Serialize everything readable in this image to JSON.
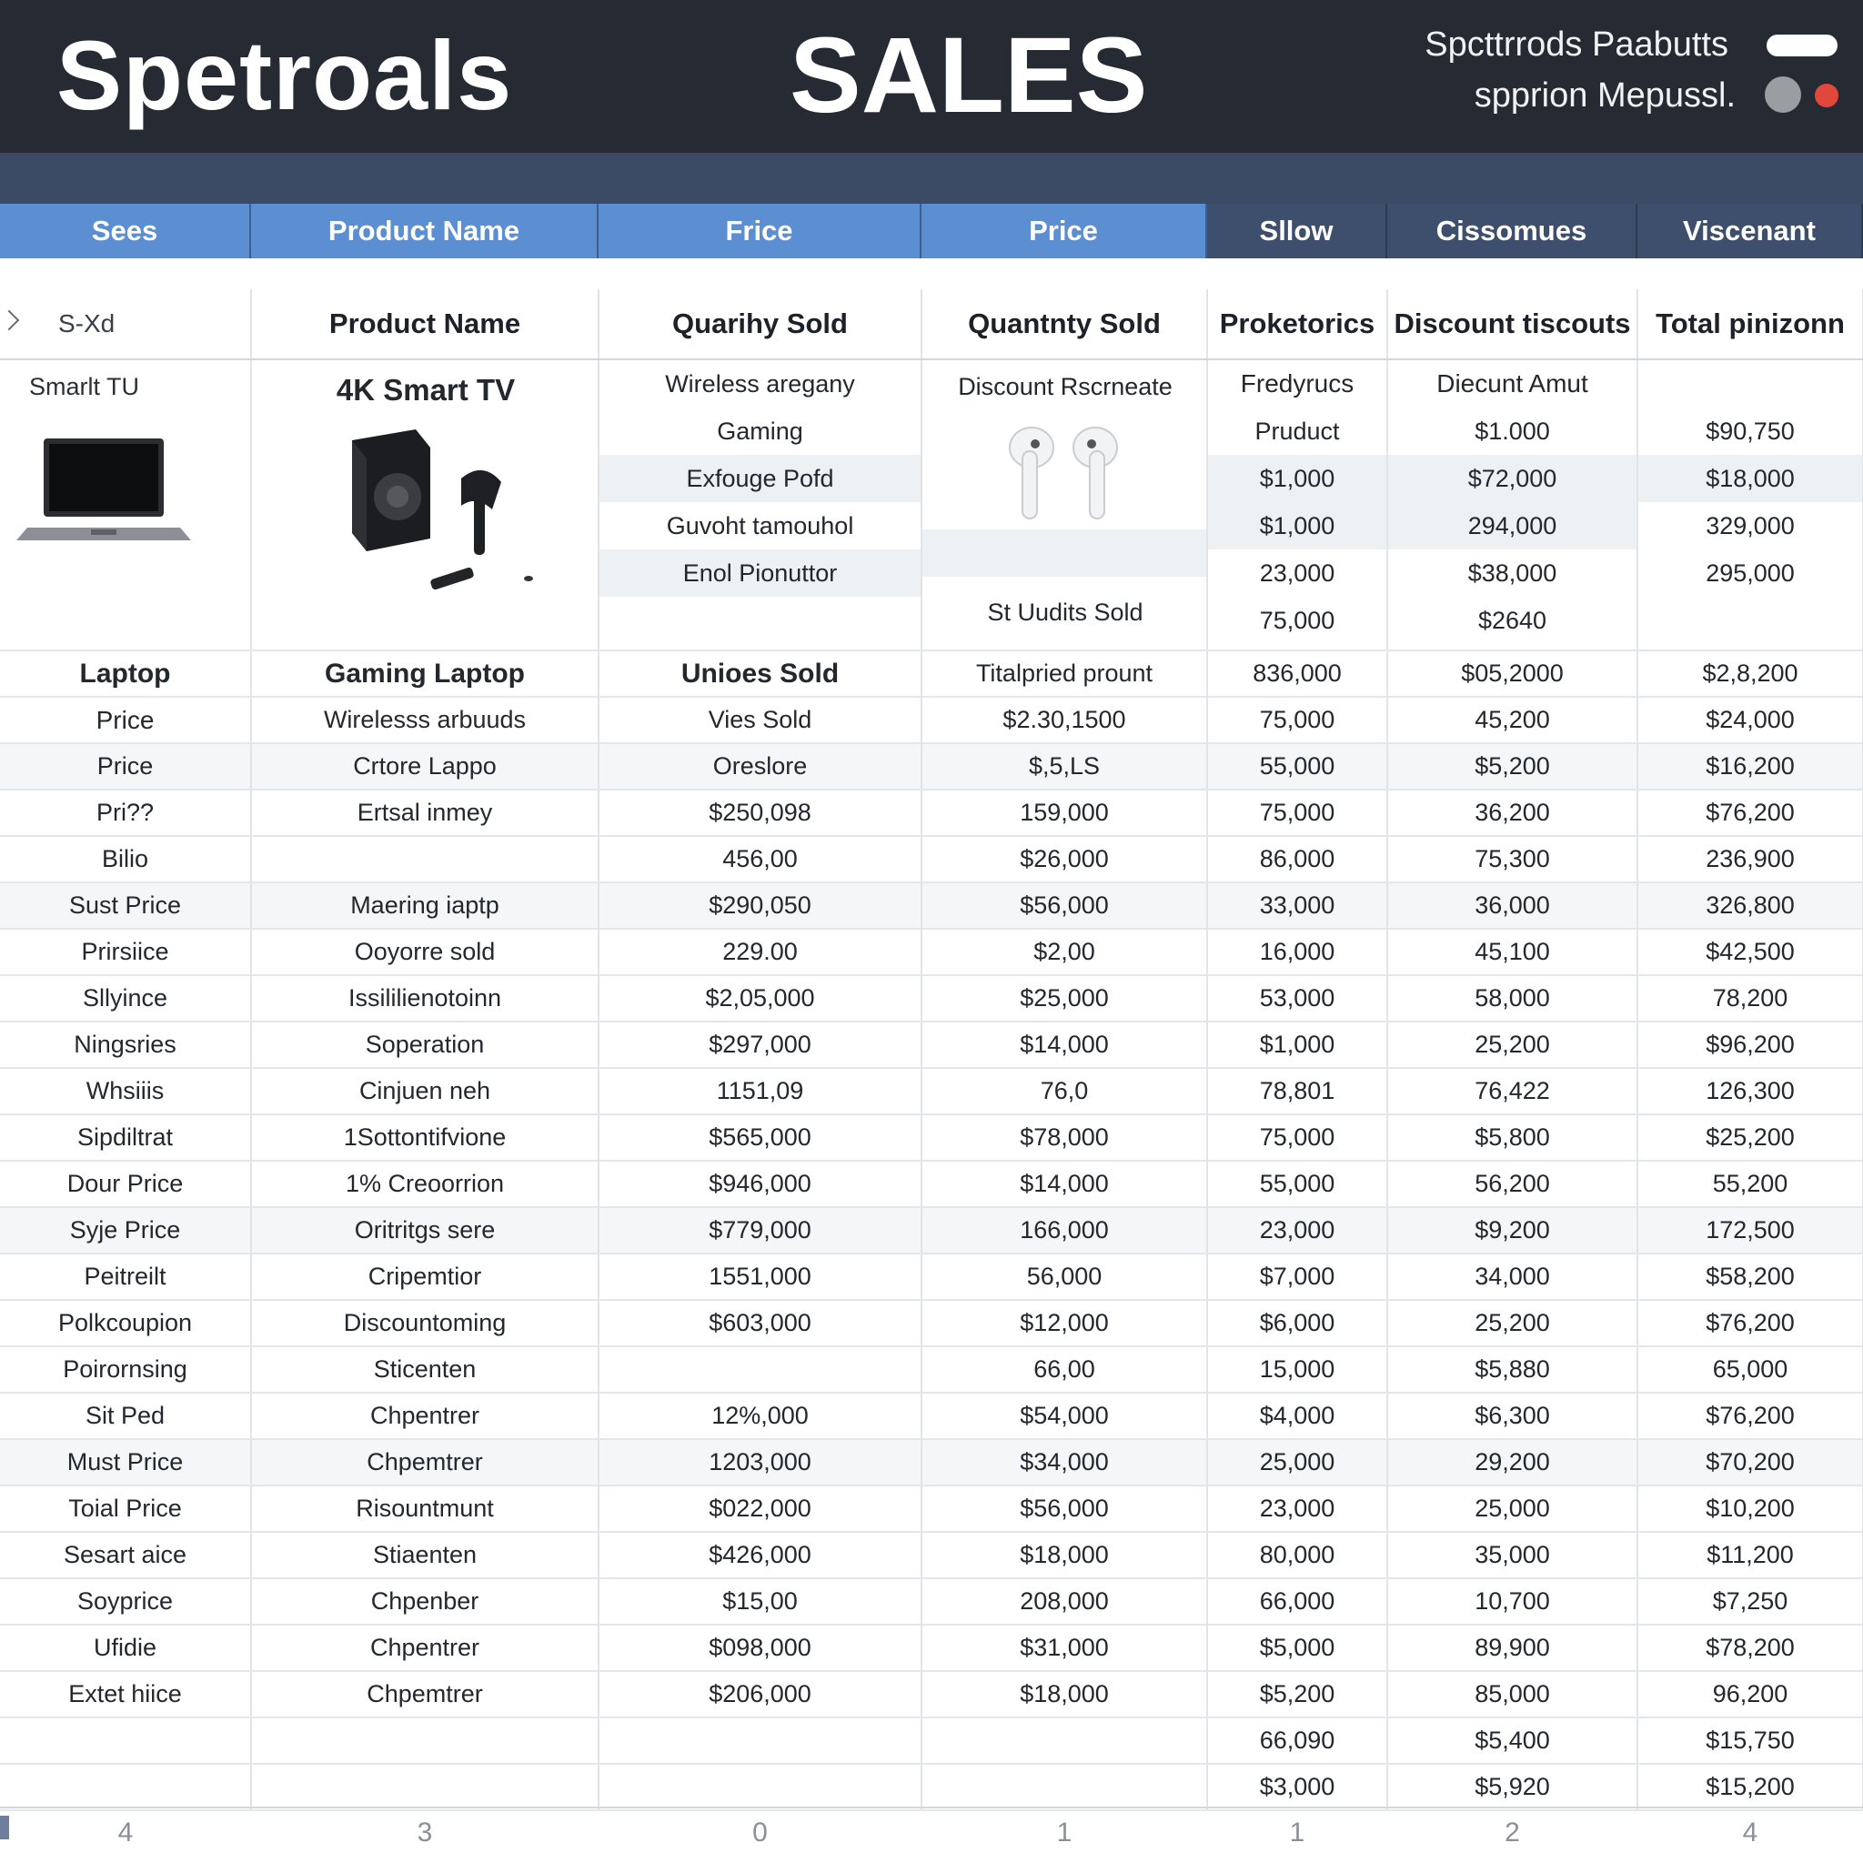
{
  "header": {
    "brand": "Spetroals",
    "title": "SALES",
    "subtitle_line1": "Spcttrrods Paabutts",
    "subtitle_line2": "spprion Mepussl."
  },
  "tabs": [
    {
      "label": "Sees",
      "style": "light"
    },
    {
      "label": "Product Name",
      "style": "light"
    },
    {
      "label": "Frice",
      "style": "light"
    },
    {
      "label": "Price",
      "style": "light"
    },
    {
      "label": "Sllow",
      "style": "dark"
    },
    {
      "label": "Cissomues",
      "style": "dark"
    },
    {
      "label": "Viscenant",
      "style": "dark"
    }
  ],
  "columns": [
    "S-Xd",
    "Product Name",
    "Quarihy Sold",
    "Quantnty Sold",
    "Proketorics",
    "Discount tiscouts",
    "Total pinizonn"
  ],
  "image_block": {
    "col0_label": "Smarlt TU",
    "col1_title": "4K Smart TV",
    "col2_items": [
      "Wireless aregany",
      "Gaming",
      "Exfouge Pofd",
      "Guvoht tamouhol",
      "Enol Pionuttor"
    ],
    "col3_top": "Discount Rscrneate",
    "col3_bottom": "St Uudits Sold",
    "col4_items": [
      "Fredyrucs",
      "Pruduct",
      "$1,000",
      "$1,000",
      "23,000",
      "75,000"
    ],
    "col5_items": [
      "Diecunt Amut",
      "$1.000",
      "$72,000",
      "294,000",
      "$38,000",
      "$2640"
    ],
    "col6_items": [
      "",
      "$90,750",
      "$18,000",
      "329,000",
      "295,000",
      ""
    ]
  },
  "rows": [
    [
      "Laptop",
      "Gaming Laptop",
      "Unioes Sold",
      "Titalpried prount",
      "836,000",
      "$05,2000",
      "$2,8,200"
    ],
    [
      "Price",
      "Wirelesss arbuuds",
      "Vies Sold",
      "$2.30,1500",
      "75,000",
      "45,200",
      "$24,000"
    ],
    [
      "Price",
      "Crtore Lappo",
      "Oreslore",
      "$,5,LS",
      "55,000",
      "$5,200",
      "$16,200"
    ],
    [
      "Pri??",
      "Ertsal inmey",
      "$250,098",
      "159,000",
      "75,000",
      "36,200",
      "$76,200"
    ],
    [
      "Bilio",
      "",
      "456,00",
      "$26,000",
      "86,000",
      "75,300",
      "236,900"
    ],
    [
      "Sust Price",
      "Maering iaptp",
      "$290,050",
      "$56,000",
      "33,000",
      "36,000",
      "326,800"
    ],
    [
      "Prirsiice",
      "Ooyorre sold",
      "229.00",
      "$2,00",
      "16,000",
      "45,100",
      "$42,500"
    ],
    [
      "Sllyince",
      "Issililienotoinn",
      "$2,05,000",
      "$25,000",
      "53,000",
      "58,000",
      "78,200"
    ],
    [
      "Ningsries",
      "Soperation",
      "$297,000",
      "$14,000",
      "$1,000",
      "25,200",
      "$96,200"
    ],
    [
      "Whsiiis",
      "Cinjuen neh",
      "1151,09",
      "76,0",
      "78,801",
      "76,422",
      "126,300"
    ],
    [
      "Sipdiltrat",
      "1Sottontifvione",
      "$565,000",
      "$78,000",
      "75,000",
      "$5,800",
      "$25,200"
    ],
    [
      "Dour Price",
      "1% Creoorrion",
      "$946,000",
      "$14,000",
      "55,000",
      "56,200",
      "55,200"
    ],
    [
      "Syje Price",
      "Oritritgs sere",
      "$779,000",
      "166,000",
      "23,000",
      "$9,200",
      "172,500"
    ],
    [
      "Peitreilt",
      "Cripemtior",
      "1551,000",
      "56,000",
      "$7,000",
      "34,000",
      "$58,200"
    ],
    [
      "Polkcoupion",
      "Discountoming",
      "$603,000",
      "$12,000",
      "$6,000",
      "25,200",
      "$76,200"
    ],
    [
      "Poirornsing",
      "Sticenten",
      "",
      "66,00",
      "15,000",
      "$5,880",
      "65,000"
    ],
    [
      "Sit Ped",
      "Chpentrer",
      "12%,000",
      "$54,000",
      "$4,000",
      "$6,300",
      "$76,200"
    ],
    [
      "Must Price",
      "Chpemtrer",
      "1203,000",
      "$34,000",
      "25,000",
      "29,200",
      "$70,200"
    ],
    [
      "Toial Price",
      "Risountmunt",
      "$022,000",
      "$56,000",
      "23,000",
      "25,000",
      "$10,200"
    ],
    [
      "Sesart aice",
      "Stiaenten",
      "$426,000",
      "$18,000",
      "80,000",
      "35,000",
      "$11,200"
    ],
    [
      "Soyprice",
      "Chpenber",
      "$15,00",
      "208,000",
      "66,000",
      "10,700",
      "$7,250"
    ],
    [
      "Ufidie",
      "Chpentrer",
      "$098,000",
      "$31,000",
      "$5,000",
      "89,900",
      "$78,200"
    ],
    [
      "Extet hiice",
      "Chpemtrer",
      "$206,000",
      "$18,000",
      "$5,200",
      "85,000",
      "96,200"
    ],
    [
      "",
      "",
      "",
      "",
      "66,090",
      "$5,400",
      "$15,750"
    ],
    [
      "",
      "",
      "",
      "",
      "$3,000",
      "$5,920",
      "$15,200"
    ]
  ],
  "pager": [
    "4",
    "3",
    "0",
    "1",
    "1",
    "2",
    "4"
  ],
  "colors": {
    "header_bg": "#262b33",
    "band_bg": "#3b4b66",
    "tab_light": "#5b8fd2",
    "tab_dark": "#3e4f6d",
    "status_red": "#e2473b"
  }
}
